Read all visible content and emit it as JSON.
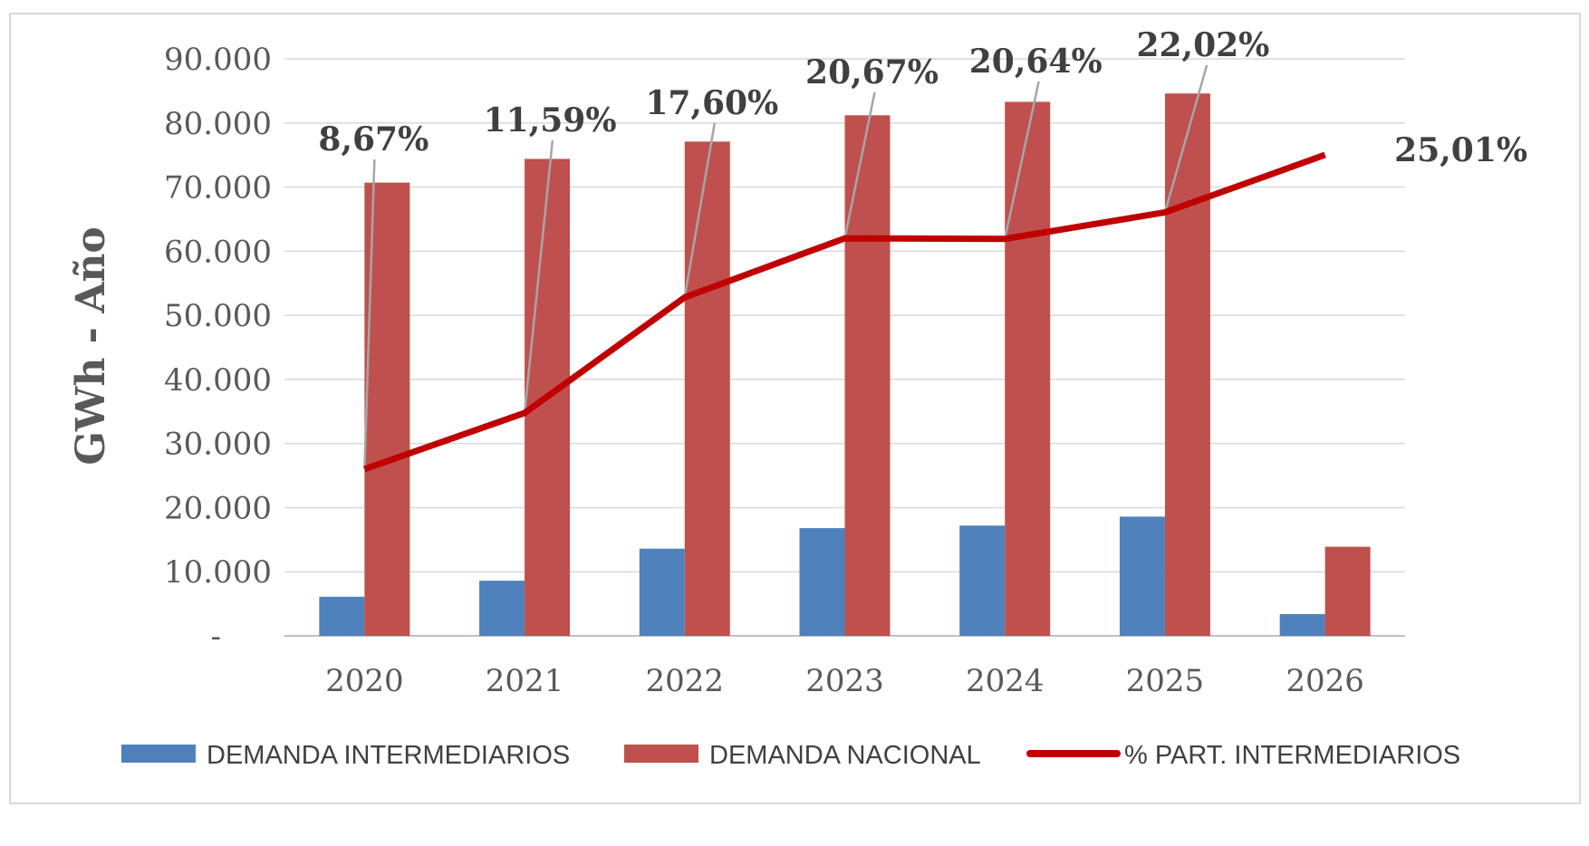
{
  "chart_data": {
    "type": "bar",
    "categories": [
      "2020",
      "2021",
      "2022",
      "2023",
      "2024",
      "2025",
      "2026"
    ],
    "ylabel": "GWh - Año",
    "ylim": [
      0,
      90000
    ],
    "yticks": [
      "-",
      "10.000",
      "20.000",
      "30.000",
      "40.000",
      "50.000",
      "60.000",
      "70.000",
      "80.000",
      "90.000"
    ],
    "grid": true,
    "legend": "bottom",
    "series": [
      {
        "name": "DEMANDA INTERMEDIARIOS",
        "type": "bar",
        "color": "#4f81bd",
        "values": [
          6100,
          8600,
          13600,
          16800,
          17200,
          18600,
          3400
        ]
      },
      {
        "name": "DEMANDA NACIONAL",
        "type": "bar",
        "color": "#c0504d",
        "values": [
          70700,
          74400,
          77100,
          81200,
          83300,
          84600,
          13900
        ]
      },
      {
        "name": "% PART. INTERMEDIARIOS",
        "type": "line",
        "color": "#c00000",
        "values": [
          8.67,
          11.59,
          17.6,
          20.67,
          20.64,
          22.02,
          25.01
        ],
        "labels": [
          "8,67%",
          "11,59%",
          "17,60%",
          "20,67%",
          "20,64%",
          "22,02%",
          "25,01%"
        ]
      }
    ]
  }
}
